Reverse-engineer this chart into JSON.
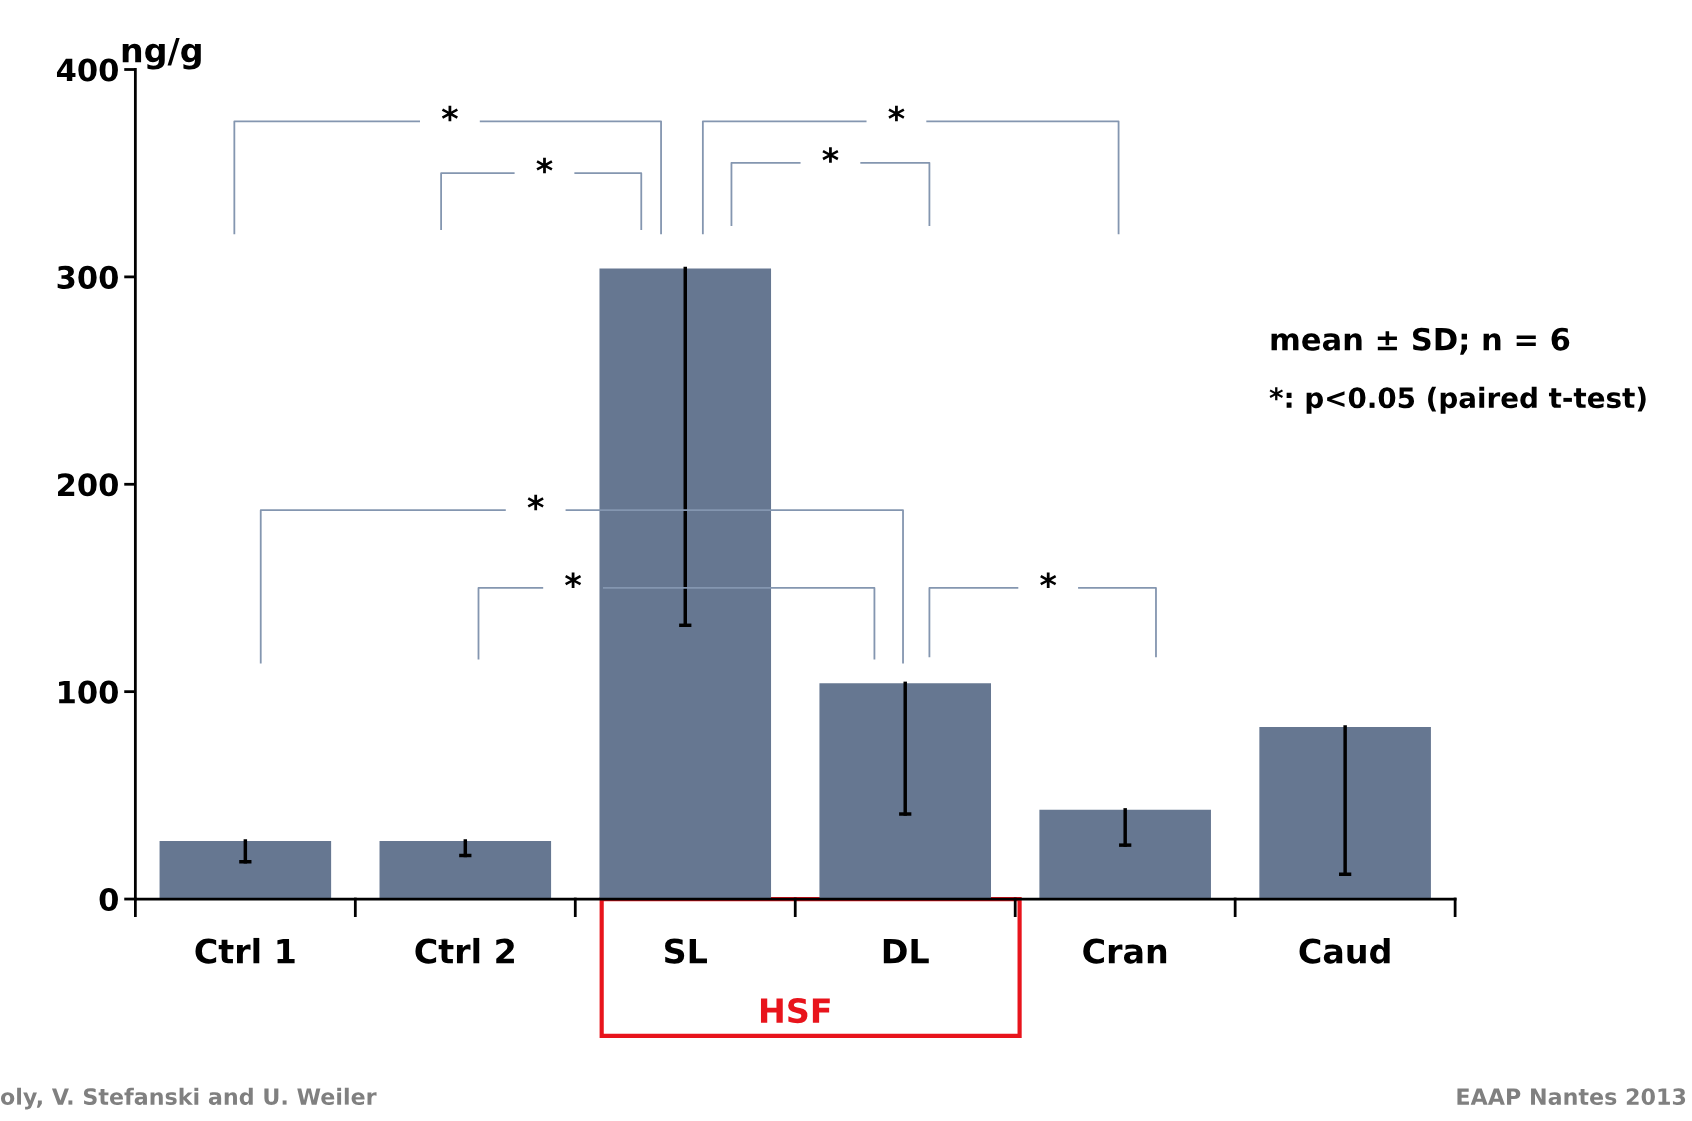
{
  "chart_data": {
    "type": "bar",
    "ylabel": "ng/g",
    "categories": [
      "Ctrl 1",
      "Ctrl 2",
      "SL",
      "DL",
      "Cran",
      "Caud"
    ],
    "values": [
      28,
      28,
      304,
      104,
      43,
      83
    ],
    "errors": [
      [
        18,
        28
      ],
      [
        21,
        28
      ],
      [
        132,
        304
      ],
      [
        41,
        104
      ],
      [
        26,
        43
      ],
      [
        12,
        83
      ]
    ],
    "color": "#667791",
    "ylim": [
      0,
      400
    ],
    "yticks": [
      0,
      100,
      200,
      300,
      400
    ],
    "grid": false,
    "annotations": [
      "HSF",
      "*",
      "*",
      "*",
      "*",
      "*",
      "*",
      "*",
      "mean ± SD; n = 6",
      "*: p<0.05 (paired t-test)",
      "oly, V. Stefanski and U. Weiler",
      "EAAP Nantes 2013"
    ]
  }
}
